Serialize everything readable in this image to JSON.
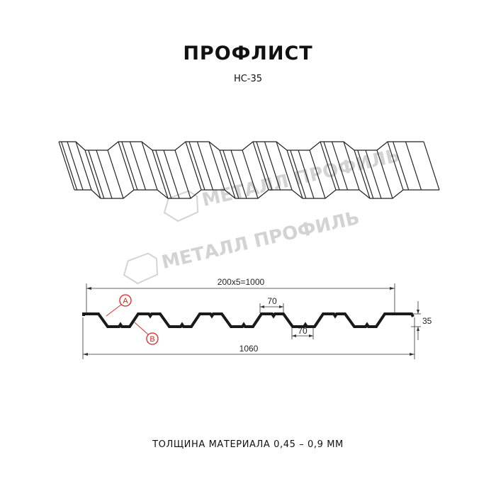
{
  "title": "ПРОФЛИСТ",
  "subtitle": "НС-35",
  "footer": "ТОЛЩИНА МАТЕРИАЛА 0,45 – 0,9 ММ",
  "watermark": "МЕТАЛЛ ПРОФИЛЬ",
  "dimensions": {
    "pitch_total": "200x5=1000",
    "overall_width": "1060",
    "height": "35",
    "top_flat": "70",
    "bottom_flat": "70"
  },
  "markers": {
    "a": "A",
    "b": "B"
  },
  "colors": {
    "line": "#1a1a1a",
    "marker": "#e02020",
    "watermark": "#d3d3d3"
  }
}
